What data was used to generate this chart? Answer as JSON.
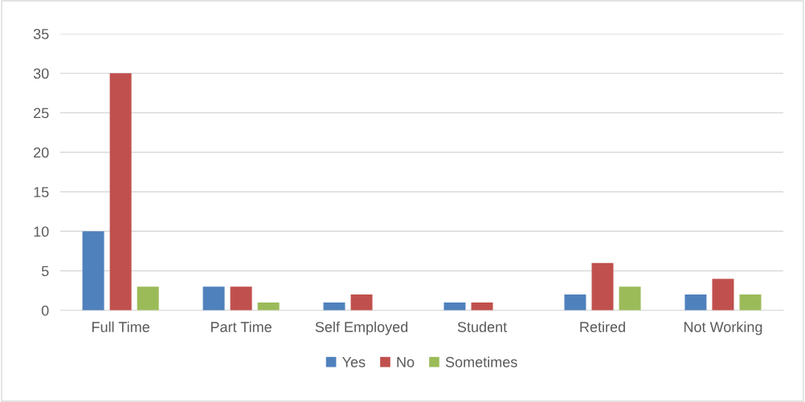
{
  "chart_data": {
    "type": "bar",
    "categories": [
      "Full Time",
      "Part Time",
      "Self Employed",
      "Student",
      "Retired",
      "Not Working"
    ],
    "series": [
      {
        "name": "Yes",
        "color": "#4f81bd",
        "values": [
          10,
          3,
          1,
          1,
          2,
          2
        ]
      },
      {
        "name": "No",
        "color": "#c0504d",
        "values": [
          30,
          3,
          2,
          1,
          6,
          4
        ]
      },
      {
        "name": "Sometimes",
        "color": "#9bbb59",
        "values": [
          3,
          1,
          0,
          0,
          3,
          2
        ]
      }
    ],
    "ylim": [
      0,
      35
    ],
    "yticks": [
      0,
      5,
      10,
      15,
      20,
      25,
      30,
      35
    ],
    "grid": "y",
    "legend": "bottom"
  }
}
